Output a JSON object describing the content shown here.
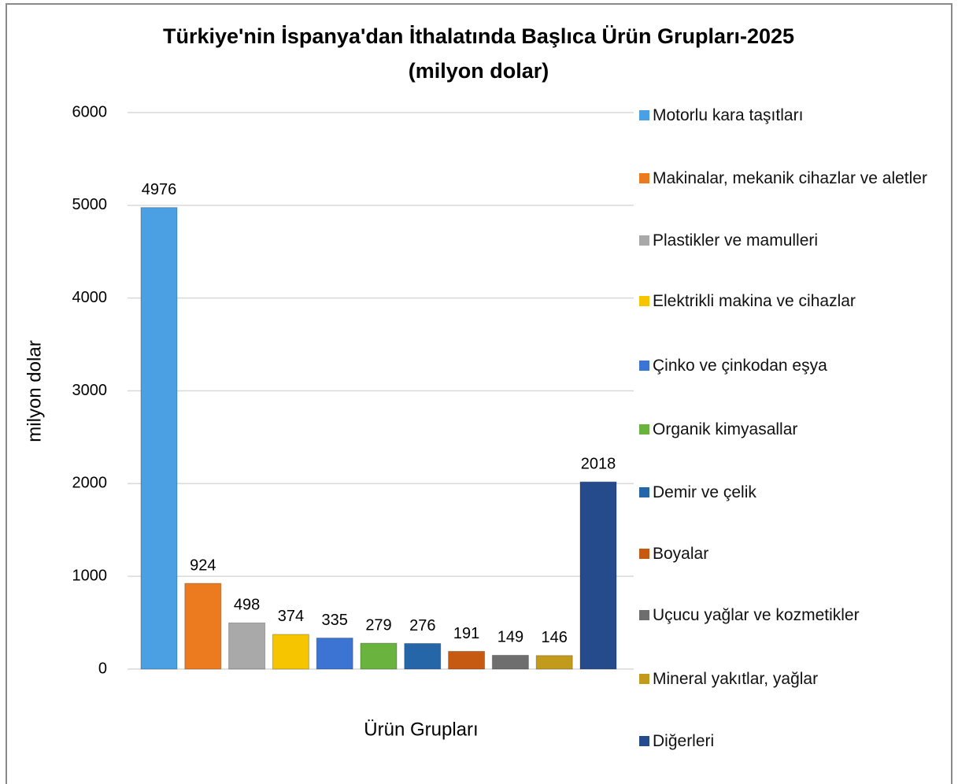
{
  "chart_data": {
    "type": "bar",
    "title": "Türkiye'nin İspanya'dan İthalatında Başlıca Ürün Grupları-2025",
    "subtitle": "(milyon dolar)",
    "y_label": "milyon dolar",
    "x_label": "Ürün Grupları",
    "categories": [
      null
    ],
    "series": [
      {
        "name": "Motorlu kara taşıtları",
        "color": "#4aa0e2",
        "values": [
          4976
        ]
      },
      {
        "name": "Makinalar, mekanik cihazlar ve aletler",
        "color": "#ec7a1f",
        "values": [
          924
        ]
      },
      {
        "name": "Plastikler ve mamulleri",
        "color": "#a9a9a9",
        "values": [
          498
        ]
      },
      {
        "name": "Elektrikli makina ve cihazlar",
        "color": "#f6c500",
        "values": [
          374
        ]
      },
      {
        "name": "Çinko ve çinkodan eşya",
        "color": "#3b74d2",
        "values": [
          335
        ]
      },
      {
        "name": "Organik kimyasallar",
        "color": "#6bb33f",
        "values": [
          279
        ]
      },
      {
        "name": "Demir ve çelik",
        "color": "#2566a9",
        "values": [
          276
        ]
      },
      {
        "name": "Boyalar",
        "color": "#c65a12",
        "values": [
          191
        ]
      },
      {
        "name": "Uçucu yağlar ve kozmetikler",
        "color": "#6e6e6e",
        "values": [
          149
        ]
      },
      {
        "name": "Mineral yakıtlar, yağlar",
        "color": "#c29b1d",
        "values": [
          146
        ]
      },
      {
        "name": "Diğerleri",
        "color": "#264b8d",
        "values": [
          2018
        ]
      }
    ],
    "ylim": [
      0,
      6000
    ],
    "yticks": [
      0,
      1000,
      2000,
      3000,
      4000,
      5000,
      6000
    ],
    "grid": true,
    "legend": "right"
  }
}
